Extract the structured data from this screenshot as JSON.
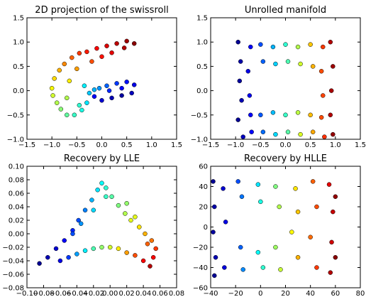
{
  "chart_data": [
    {
      "type": "scatter",
      "title": "2D projection of the swissroll",
      "xlim": [
        -1.5,
        1.5
      ],
      "ylim": [
        -1.0,
        1.5
      ],
      "x_ticks": [
        "−1.5",
        "−1.0",
        "−0.5",
        "0.0",
        "0.5",
        "1.0",
        "1.5"
      ],
      "y_ticks": [
        "−1.0",
        "−0.5",
        "0.0",
        "0.5",
        "1.0",
        "1.5"
      ],
      "grid": false,
      "colormap": "jet",
      "series": [
        {
          "values": [
            [
              -0.45,
              0.77,
              0.82
            ],
            [
              -0.3,
              0.8,
              0.85
            ],
            [
              -0.1,
              0.87,
              0.88
            ],
            [
              0.1,
              0.92,
              0.91
            ],
            [
              0.3,
              0.97,
              0.94
            ],
            [
              0.5,
              1.02,
              0.97
            ],
            [
              0.65,
              0.97,
              0.99
            ],
            [
              -0.6,
              0.68,
              0.78
            ],
            [
              -0.75,
              0.55,
              0.74
            ],
            [
              -0.85,
              0.42,
              0.7
            ],
            [
              -0.95,
              0.25,
              0.66
            ],
            [
              -1.0,
              0.05,
              0.62
            ],
            [
              -0.98,
              -0.1,
              0.58
            ],
            [
              -0.9,
              -0.25,
              0.55
            ],
            [
              -0.82,
              -0.38,
              0.51
            ],
            [
              -0.7,
              -0.5,
              0.47
            ],
            [
              -0.55,
              -0.5,
              0.43
            ],
            [
              -0.4,
              -0.4,
              0.4
            ],
            [
              -0.3,
              -0.25,
              0.35
            ],
            [
              -0.25,
              -0.05,
              0.32
            ],
            [
              -0.15,
              0.02,
              0.3
            ],
            [
              -0.05,
              0.05,
              0.27
            ],
            [
              0.1,
              0.1,
              0.22
            ],
            [
              0.3,
              0.15,
              0.18
            ],
            [
              0.5,
              0.18,
              0.14
            ],
            [
              0.65,
              0.12,
              0.1
            ],
            [
              0.6,
              -0.05,
              0.06
            ],
            [
              0.4,
              -0.1,
              0.03
            ],
            [
              0.2,
              -0.15,
              0.05
            ],
            [
              0.0,
              -0.2,
              0.08
            ],
            [
              -0.15,
              -0.12,
              0.12
            ],
            [
              0.15,
              0.0,
              0.16
            ],
            [
              0.4,
              0.05,
              0.12
            ],
            [
              -0.2,
              0.6,
              0.8
            ],
            [
              0.0,
              0.7,
              0.86
            ],
            [
              0.2,
              0.78,
              0.9
            ],
            [
              0.45,
              0.88,
              0.95
            ],
            [
              -0.5,
              0.45,
              0.72
            ],
            [
              -0.65,
              0.2,
              0.64
            ],
            [
              -0.7,
              -0.15,
              0.55
            ],
            [
              -0.45,
              -0.3,
              0.42
            ],
            [
              -0.35,
              0.1,
              0.36
            ]
          ]
        }
      ]
    },
    {
      "type": "scatter",
      "title": "Unrolled manifold",
      "xlim": [
        -1.5,
        1.5
      ],
      "ylim": [
        -1.0,
        1.5
      ],
      "x_ticks": [
        "−1.5",
        "−1.0",
        "−0.5",
        "0.0",
        "0.5",
        "1.0",
        "1.5"
      ],
      "y_ticks": [
        "−1.0",
        "−0.5",
        "0.0",
        "0.5",
        "1.0",
        "1.5"
      ],
      "grid": false,
      "colormap": "jet",
      "series": [
        {
          "values": [
            [
              -0.95,
              1.0,
              0.02
            ],
            [
              -0.9,
              0.6,
              0.04
            ],
            [
              -0.92,
              0.2,
              0.03
            ],
            [
              -0.88,
              -0.2,
              0.05
            ],
            [
              -0.95,
              -0.6,
              0.02
            ],
            [
              -0.85,
              -0.95,
              0.06
            ],
            [
              -0.7,
              0.9,
              0.12
            ],
            [
              -0.75,
              0.4,
              0.1
            ],
            [
              -0.72,
              -0.1,
              0.11
            ],
            [
              -0.7,
              -0.5,
              0.12
            ],
            [
              -0.68,
              -0.85,
              0.13
            ],
            [
              -0.5,
              0.95,
              0.2
            ],
            [
              -0.45,
              0.6,
              0.22
            ],
            [
              -0.5,
              -0.5,
              0.21
            ],
            [
              -0.45,
              -0.85,
              0.23
            ],
            [
              -0.25,
              0.9,
              0.3
            ],
            [
              -0.2,
              0.55,
              0.33
            ],
            [
              -0.25,
              -0.45,
              0.31
            ],
            [
              -0.2,
              -0.9,
              0.34
            ],
            [
              0.0,
              0.95,
              0.42
            ],
            [
              0.05,
              0.6,
              0.45
            ],
            [
              0.0,
              -0.5,
              0.43
            ],
            [
              0.05,
              -0.85,
              0.46
            ],
            [
              0.25,
              0.9,
              0.55
            ],
            [
              0.3,
              0.55,
              0.58
            ],
            [
              0.25,
              -0.45,
              0.56
            ],
            [
              0.3,
              -0.9,
              0.59
            ],
            [
              0.5,
              0.95,
              0.68
            ],
            [
              0.55,
              0.5,
              0.7
            ],
            [
              0.5,
              -0.5,
              0.69
            ],
            [
              0.55,
              -0.85,
              0.71
            ],
            [
              0.75,
              0.9,
              0.82
            ],
            [
              0.72,
              0.4,
              0.8
            ],
            [
              0.75,
              -0.1,
              0.81
            ],
            [
              0.72,
              -0.55,
              0.8
            ],
            [
              0.78,
              -0.95,
              0.83
            ],
            [
              0.9,
              1.0,
              0.95
            ],
            [
              0.95,
              0.5,
              0.97
            ],
            [
              0.92,
              0.0,
              0.96
            ],
            [
              0.9,
              -0.5,
              0.95
            ],
            [
              0.95,
              -0.9,
              0.98
            ]
          ]
        }
      ]
    },
    {
      "type": "scatter",
      "title": "Recovery by LLE",
      "xlim": [
        -0.1,
        0.08
      ],
      "ylim": [
        -0.08,
        0.1
      ],
      "x_ticks": [
        "−0.10",
        "−0.08",
        "−0.06",
        "−0.04",
        "−0.02",
        "0.00",
        "0.02",
        "0.04",
        "0.06",
        "0.08"
      ],
      "y_ticks": [
        "−0.08",
        "−0.06",
        "−0.04",
        "−0.02",
        "0.00",
        "0.02",
        "0.04",
        "0.06",
        "0.08",
        "0.10"
      ],
      "grid": false,
      "colormap": "jet",
      "series": [
        {
          "values": [
            [
              -0.085,
              -0.044,
              0.02
            ],
            [
              -0.075,
              -0.035,
              0.05
            ],
            [
              -0.065,
              -0.022,
              0.08
            ],
            [
              -0.055,
              -0.01,
              0.12
            ],
            [
              -0.045,
              0.005,
              0.16
            ],
            [
              -0.038,
              0.02,
              0.2
            ],
            [
              -0.03,
              0.035,
              0.25
            ],
            [
              -0.022,
              0.05,
              0.3
            ],
            [
              -0.015,
              0.065,
              0.35
            ],
            [
              -0.01,
              0.075,
              0.38
            ],
            [
              -0.005,
              0.068,
              0.42
            ],
            [
              0.002,
              0.055,
              0.46
            ],
            [
              0.01,
              0.042,
              0.5
            ],
            [
              0.018,
              0.03,
              0.55
            ],
            [
              0.025,
              0.02,
              0.6
            ],
            [
              0.035,
              0.01,
              0.65
            ],
            [
              0.042,
              0.0,
              0.7
            ],
            [
              0.05,
              -0.01,
              0.76
            ],
            [
              0.055,
              -0.022,
              0.82
            ],
            [
              0.052,
              -0.035,
              0.88
            ],
            [
              0.048,
              -0.048,
              0.95
            ],
            [
              -0.06,
              -0.04,
              0.1
            ],
            [
              -0.05,
              -0.035,
              0.18
            ],
            [
              -0.04,
              -0.03,
              0.28
            ],
            [
              -0.03,
              -0.025,
              0.36
            ],
            [
              -0.02,
              -0.022,
              0.45
            ],
            [
              -0.01,
              -0.02,
              0.52
            ],
            [
              0.0,
              -0.02,
              0.58
            ],
            [
              0.01,
              -0.022,
              0.64
            ],
            [
              0.02,
              -0.028,
              0.72
            ],
            [
              0.03,
              -0.032,
              0.8
            ],
            [
              0.04,
              -0.04,
              0.88
            ],
            [
              -0.045,
              0.0,
              0.2
            ],
            [
              -0.035,
              0.015,
              0.27
            ],
            [
              -0.02,
              0.035,
              0.34
            ],
            [
              -0.005,
              0.055,
              0.43
            ],
            [
              0.02,
              0.045,
              0.52
            ],
            [
              0.03,
              0.025,
              0.6
            ],
            [
              0.045,
              -0.015,
              0.78
            ]
          ]
        }
      ]
    },
    {
      "type": "scatter",
      "title": "Recovery by HLLE",
      "xlim": [
        -40,
        80
      ],
      "ylim": [
        -60,
        60
      ],
      "x_ticks": [
        "−40",
        "−20",
        "0",
        "20",
        "40",
        "60",
        "80"
      ],
      "y_ticks": [
        "−60",
        "−40",
        "−20",
        "0",
        "20",
        "40",
        "60"
      ],
      "grid": false,
      "colormap": "jet",
      "series": [
        {
          "values": [
            [
              -38,
              45,
              0.02
            ],
            [
              -37,
              20,
              0.04
            ],
            [
              -38,
              -5,
              0.03
            ],
            [
              -36,
              -30,
              0.05
            ],
            [
              -37,
              -48,
              0.02
            ],
            [
              -30,
              38,
              0.08
            ],
            [
              -28,
              5,
              0.1
            ],
            [
              -29,
              -40,
              0.09
            ],
            [
              -18,
              45,
              0.2
            ],
            [
              -15,
              30,
              0.24
            ],
            [
              -16,
              -20,
              0.22
            ],
            [
              -14,
              -42,
              0.26
            ],
            [
              -2,
              42,
              0.35
            ],
            [
              0,
              25,
              0.4
            ],
            [
              -2,
              -25,
              0.38
            ],
            [
              2,
              -40,
              0.42
            ],
            [
              12,
              40,
              0.5
            ],
            [
              15,
              20,
              0.55
            ],
            [
              12,
              -20,
              0.53
            ],
            [
              16,
              -42,
              0.57
            ],
            [
              28,
              38,
              0.65
            ],
            [
              30,
              15,
              0.68
            ],
            [
              25,
              -5,
              0.63
            ],
            [
              30,
              -30,
              0.7
            ],
            [
              42,
              45,
              0.78
            ],
            [
              45,
              20,
              0.8
            ],
            [
              40,
              -10,
              0.77
            ],
            [
              45,
              -40,
              0.82
            ],
            [
              55,
              42,
              0.9
            ],
            [
              58,
              15,
              0.93
            ],
            [
              57,
              -15,
              0.92
            ],
            [
              56,
              -45,
              0.95
            ],
            [
              60,
              30,
              0.98
            ],
            [
              60,
              -30,
              0.99
            ]
          ]
        }
      ]
    }
  ]
}
